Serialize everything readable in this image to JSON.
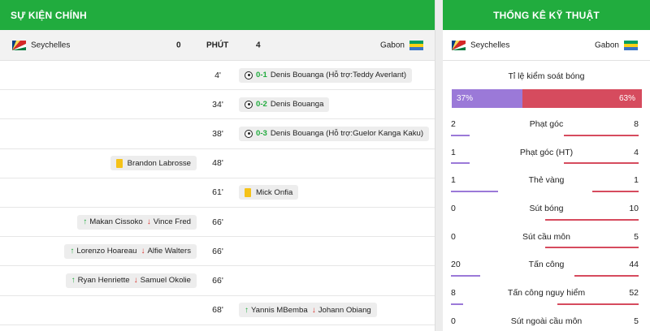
{
  "events_panel": {
    "title": "SỰ KIỆN CHÍNH",
    "home_team": "Seychelles",
    "home_score": "0",
    "minute_header": "PHÚT",
    "away_score": "4",
    "away_team": "Gabon",
    "events": [
      {
        "minute": "4'",
        "side": "away",
        "kind": "goal",
        "score": "0-1",
        "text": "Denis Bouanga (Hỗ trợ:Teddy Averlant)"
      },
      {
        "minute": "34'",
        "side": "away",
        "kind": "goal",
        "score": "0-2",
        "text": "Denis Bouanga"
      },
      {
        "minute": "38'",
        "side": "away",
        "kind": "goal",
        "score": "0-3",
        "text": "Denis Bouanga (Hỗ trợ:Guelor Kanga Kaku)"
      },
      {
        "minute": "48'",
        "side": "home",
        "kind": "yellow",
        "text": "Brandon Labrosse"
      },
      {
        "minute": "61'",
        "side": "away",
        "kind": "yellow",
        "text": "Mick Onfia"
      },
      {
        "minute": "66'",
        "side": "home",
        "kind": "sub",
        "in": "Makan Cissoko",
        "out": "Vince Fred"
      },
      {
        "minute": "66'",
        "side": "home",
        "kind": "sub",
        "in": "Lorenzo Hoareau",
        "out": "Alfie Walters"
      },
      {
        "minute": "66'",
        "side": "home",
        "kind": "sub",
        "in": "Ryan Henriette",
        "out": "Samuel Okolie"
      },
      {
        "minute": "68'",
        "side": "away",
        "kind": "sub",
        "in": "Yannis MBemba",
        "out": "Johann Obiang"
      }
    ]
  },
  "stats_panel": {
    "title": "THỐNG KÊ KỸ THUẬT",
    "home_team": "Seychelles",
    "away_team": "Gabon",
    "possession": {
      "label": "Tỉ lệ kiểm soát bóng",
      "home": "37%",
      "away": "63%",
      "home_fraction": 0.37
    },
    "stats": [
      {
        "label": "Phạt góc",
        "home": "2",
        "away": "8"
      },
      {
        "label": "Phạt góc (HT)",
        "home": "1",
        "away": "4"
      },
      {
        "label": "Thẻ vàng",
        "home": "1",
        "away": "1"
      },
      {
        "label": "Sút bóng",
        "home": "0",
        "away": "10"
      },
      {
        "label": "Sút cầu môn",
        "home": "0",
        "away": "5"
      },
      {
        "label": "Tấn công",
        "home": "20",
        "away": "44"
      },
      {
        "label": "Tấn công nguy hiểm",
        "home": "8",
        "away": "52"
      },
      {
        "label": "Sút ngoài cầu môn",
        "home": "0",
        "away": "5"
      }
    ]
  },
  "colors": {
    "header_green": "#21ac3e",
    "home_bar": "#9b79d8",
    "away_bar": "#d64b5e",
    "yellow_card": "#f5c218",
    "sub_in": "#21ac3e",
    "sub_out": "#d9302c"
  },
  "icons": {
    "home_flag": "seychelles-flag-icon",
    "away_flag": "gabon-flag-icon",
    "goal": "soccer-ball-icon",
    "yellow": "yellow-card-icon",
    "sub_in": "arrow-up-icon",
    "sub_out": "arrow-down-icon"
  }
}
